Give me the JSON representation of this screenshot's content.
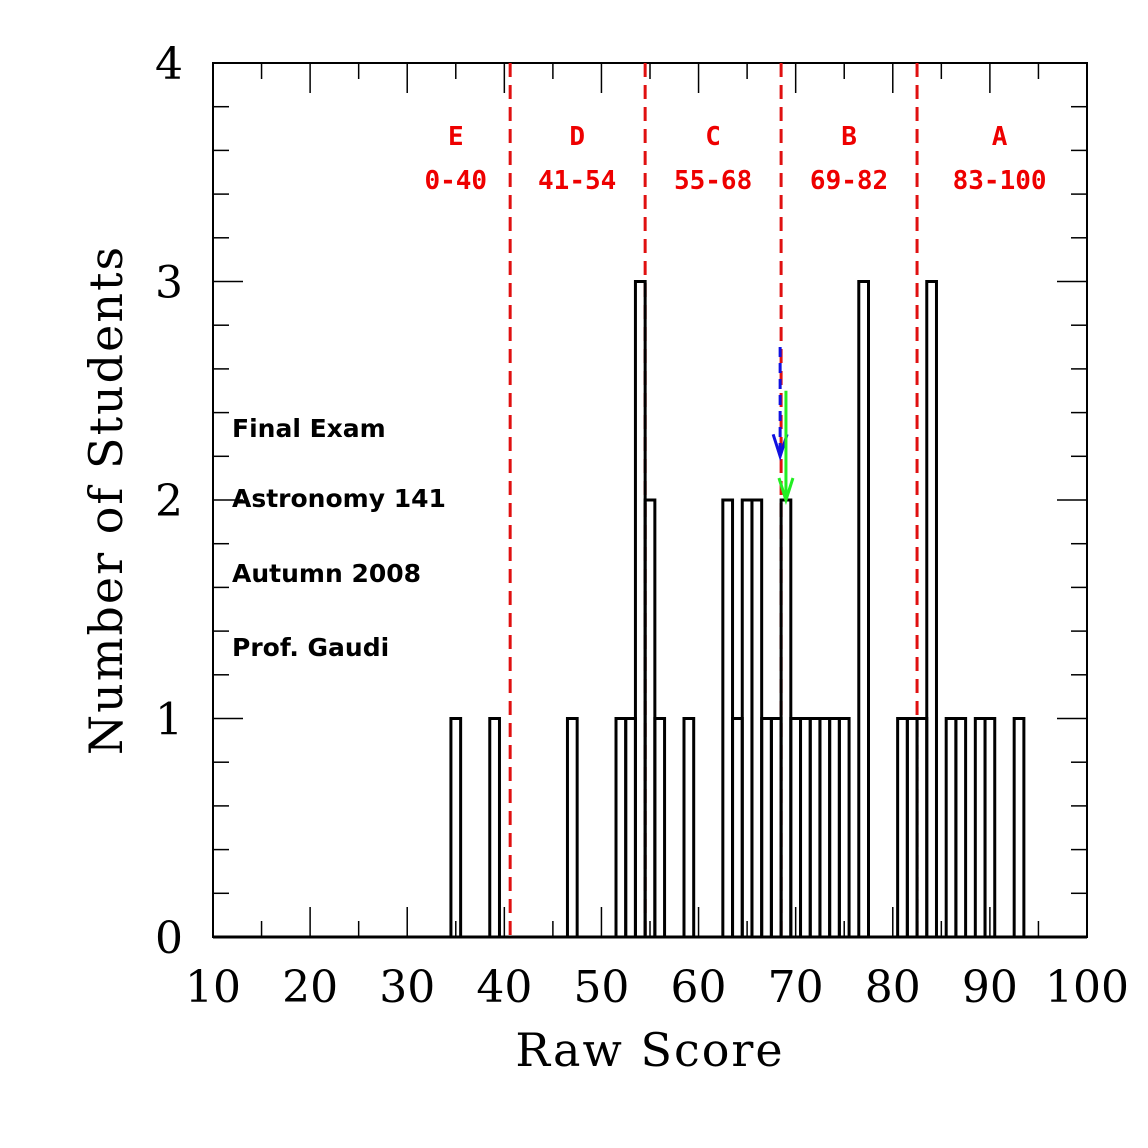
{
  "chart_data": {
    "type": "histogram",
    "xlabel": "Raw Score",
    "ylabel": "Number of Students",
    "xlim": [
      10,
      100
    ],
    "ylim": [
      0,
      4
    ],
    "xticks": [
      "10",
      "20",
      "30",
      "40",
      "50",
      "60",
      "70",
      "80",
      "90",
      "100"
    ],
    "yticks": [
      "0",
      "1",
      "2",
      "3",
      "4"
    ],
    "bin_width": 1,
    "bins": [
      {
        "x": 35,
        "count": 1
      },
      {
        "x": 39,
        "count": 1
      },
      {
        "x": 47,
        "count": 1
      },
      {
        "x": 52,
        "count": 1
      },
      {
        "x": 53,
        "count": 1
      },
      {
        "x": 54,
        "count": 3
      },
      {
        "x": 55,
        "count": 2
      },
      {
        "x": 56,
        "count": 1
      },
      {
        "x": 59,
        "count": 1
      },
      {
        "x": 63,
        "count": 2
      },
      {
        "x": 64,
        "count": 1
      },
      {
        "x": 65,
        "count": 2
      },
      {
        "x": 66,
        "count": 2
      },
      {
        "x": 67,
        "count": 1
      },
      {
        "x": 68,
        "count": 1
      },
      {
        "x": 69,
        "count": 2
      },
      {
        "x": 70,
        "count": 1
      },
      {
        "x": 71,
        "count": 1
      },
      {
        "x": 72,
        "count": 1
      },
      {
        "x": 73,
        "count": 1
      },
      {
        "x": 74,
        "count": 1
      },
      {
        "x": 75,
        "count": 1
      },
      {
        "x": 77,
        "count": 3
      },
      {
        "x": 81,
        "count": 1
      },
      {
        "x": 82,
        "count": 1
      },
      {
        "x": 83,
        "count": 1
      },
      {
        "x": 84,
        "count": 3
      },
      {
        "x": 86,
        "count": 1
      },
      {
        "x": 87,
        "count": 1
      },
      {
        "x": 89,
        "count": 1
      },
      {
        "x": 90,
        "count": 1
      },
      {
        "x": 93,
        "count": 1
      }
    ],
    "grade_cutoffs": [
      40.6,
      54.5,
      68.5,
      82.5
    ],
    "grades": [
      {
        "letter": "E",
        "range": "0-40",
        "center": 35
      },
      {
        "letter": "D",
        "range": "41-54",
        "center": 47.5
      },
      {
        "letter": "C",
        "range": "55-68",
        "center": 61.5
      },
      {
        "letter": "B",
        "range": "69-82",
        "center": 75.5
      },
      {
        "letter": "A",
        "range": "83-100",
        "center": 91
      }
    ],
    "markers": [
      {
        "name": "blue-arrow",
        "x": 68.4,
        "y_from": 2.7,
        "y_to": 2.2,
        "color": "#1010e0",
        "dashed": true
      },
      {
        "name": "green-arrow",
        "x": 69.0,
        "y_from": 2.5,
        "y_to": 2.0,
        "color": "#22ee22",
        "dashed": false
      }
    ],
    "annotations": [
      "Final Exam",
      "Astronomy 141",
      "Autumn 2008",
      "Prof. Gaudi"
    ],
    "colors": {
      "histogram": "#000000",
      "cutoff": "#e01010"
    }
  }
}
